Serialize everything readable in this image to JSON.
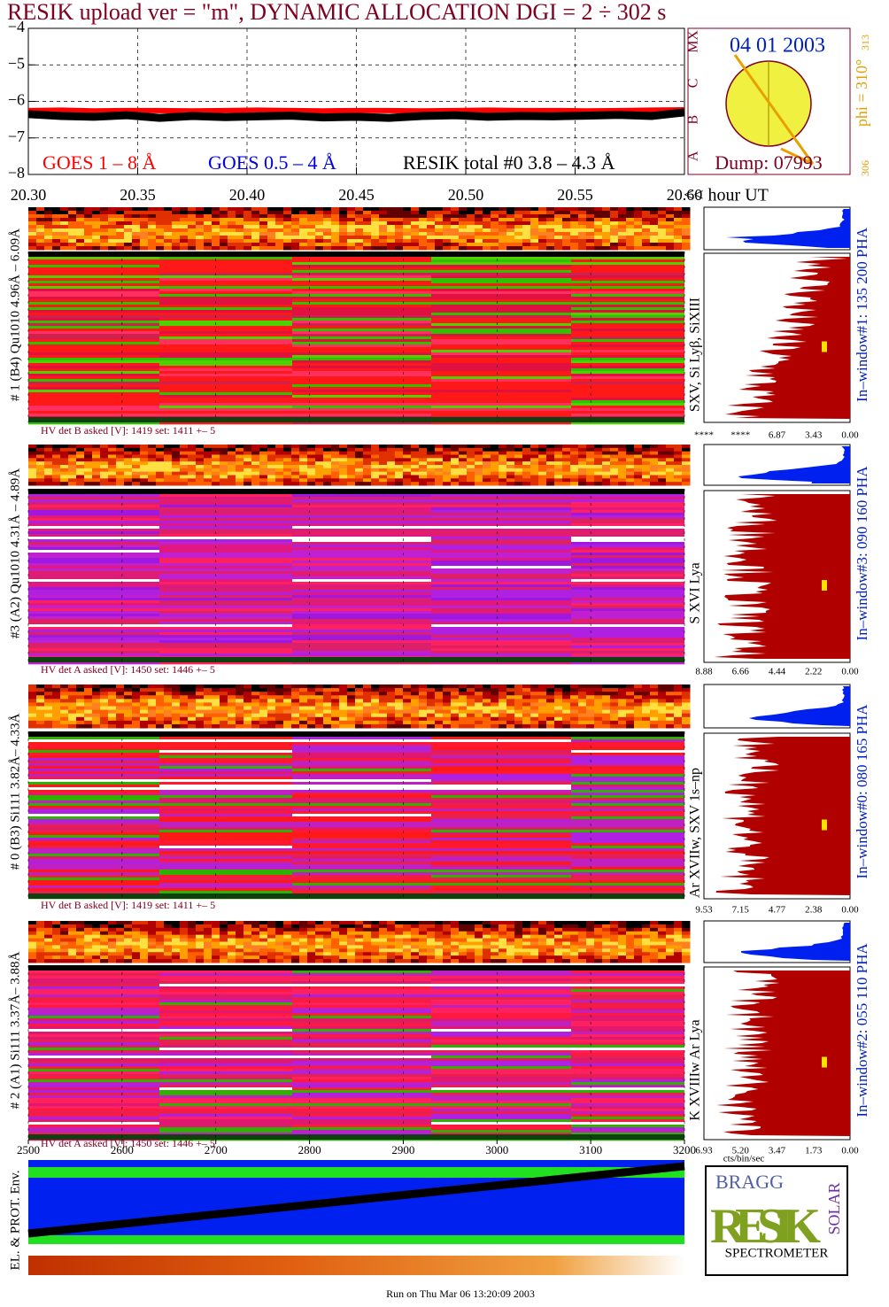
{
  "title": "RESIK upload ver = \"m\", DYNAMIC ALLOCATION  DGI =   2 ÷ 302 s",
  "chart_data": {
    "type": "line",
    "x": [
      20.3,
      20.315,
      20.33,
      20.345,
      20.36,
      20.375,
      20.39,
      20.405,
      20.42,
      20.435,
      20.45,
      20.465,
      20.48,
      20.495,
      20.51,
      20.525,
      20.54,
      20.555,
      20.57,
      20.585,
      20.6
    ],
    "series": [
      {
        "name": "GOES 1 – 8 Å",
        "color": "#ff0000",
        "values": [
          -6.25,
          -6.24,
          -6.26,
          -6.25,
          -6.25,
          -6.26,
          -6.25,
          -6.24,
          -6.25,
          -6.26,
          -6.25,
          -6.25,
          -6.26,
          -6.25,
          -6.24,
          -6.25,
          -6.25,
          -6.26,
          -6.25,
          -6.24,
          -6.23
        ]
      },
      {
        "name": "GOES 0.5 – 4 Å",
        "color": "#0000e0",
        "values": [
          null,
          null,
          null,
          null,
          null,
          null,
          null,
          null,
          null,
          null,
          null,
          null,
          null,
          null,
          null,
          null,
          null,
          null,
          null,
          null,
          null
        ]
      },
      {
        "name": "RESIK total #0  3.8 – 4.3 Å",
        "color": "#000000",
        "values": [
          -6.35,
          -6.4,
          -6.42,
          -6.38,
          -6.45,
          -6.4,
          -6.43,
          -6.41,
          -6.39,
          -6.44,
          -6.42,
          -6.45,
          -6.4,
          -6.38,
          -6.42,
          -6.4,
          -6.41,
          -6.39,
          -6.37,
          -6.4,
          -6.3
        ]
      }
    ],
    "xlim": [
      20.3,
      20.6
    ],
    "xticks": [
      {
        "value": 20.3,
        "label": "20.30"
      },
      20.35,
      {
        "value": 20.4,
        "label": "20.40"
      },
      20.45,
      {
        "value": 20.5,
        "label": "20.50"
      },
      20.55,
      {
        "value": 20.6,
        "label": "20.60"
      }
    ],
    "xlabel": "<< hour UT",
    "ylim": [
      -8,
      -4
    ],
    "yticks": [
      {
        "value": -8,
        "label": "−8"
      },
      {
        "value": -7,
        "label": "−7"
      },
      {
        "value": -6,
        "label": "−6"
      },
      {
        "value": -5,
        "label": "−5"
      },
      {
        "value": -4,
        "label": "−4"
      }
    ],
    "grid": true,
    "class_letters": [
      "A",
      "B",
      "C",
      "M",
      "X"
    ]
  },
  "sun": {
    "date": "04 01 2003",
    "phi": "phi = 310°",
    "phi_upper": "313",
    "phi_lower": "306",
    "dump": "Dump: 07993"
  },
  "panels": [
    {
      "left_label": "# 1 (B4) Qu1010 4.96Å – 6.09Å",
      "right_label": "SXV, Si Lyβ, SiXIII",
      "window_label": "In–window#1:  135 200 PHA",
      "hv_text": "HV det B asked [V]:  1419 set:  1411 +–    5",
      "hist_ticks": [
        "****",
        "****",
        "6.87",
        "3.43",
        "0.00"
      ]
    },
    {
      "left_label": "#3 (A2) Qu1010  4.31Å – 4.89Å",
      "right_label": "S XVI Lya",
      "window_label": "In–window#3:  090 160 PHA",
      "hv_text": "HV det A asked [V]:  1450 set:  1446 +–    5",
      "hist_ticks": [
        "8.88",
        "6.66",
        "4.44",
        "2.22",
        "0.00"
      ]
    },
    {
      "left_label": "# 0 (B3) Si111  3.82Å– 4.33Å",
      "right_label": "Ar XVIIw,  SXV 1s–np",
      "window_label": "In–window#0:  080 165 PHA",
      "hv_text": "HV det B asked [V]:  1419 set:  1411 +–    5",
      "hist_ticks": [
        "9.53",
        "7.15",
        "4.77",
        "2.38",
        "0.00"
      ]
    },
    {
      "left_label": "# 2 (A1) Si111  3.37Å– 3.88Å",
      "right_label": "K XVIIIw  Ar Lya",
      "window_label": "In–window#2:  055 110 PHA",
      "hv_text": "HV det A asked [V]:  1450 set:  1446 +–    5",
      "hist_ticks": [
        "6.93",
        "5.20",
        "3.47",
        "1.73",
        "0.00"
      ]
    }
  ],
  "channel_axis": {
    "ticks": [
      2500,
      2600,
      2700,
      2800,
      2900,
      3000,
      3100,
      3200
    ],
    "lim": [
      2500,
      3200
    ]
  },
  "hist_unit": "cts/bin/sec",
  "env_label": "EL. & PROT. Env.",
  "logo": {
    "top": "BRAGG",
    "main": "RESIK",
    "side": "SOLAR",
    "caption": "SPECTROMETER"
  },
  "footer": "Run on Thu Mar 06 13:20:09 2003"
}
